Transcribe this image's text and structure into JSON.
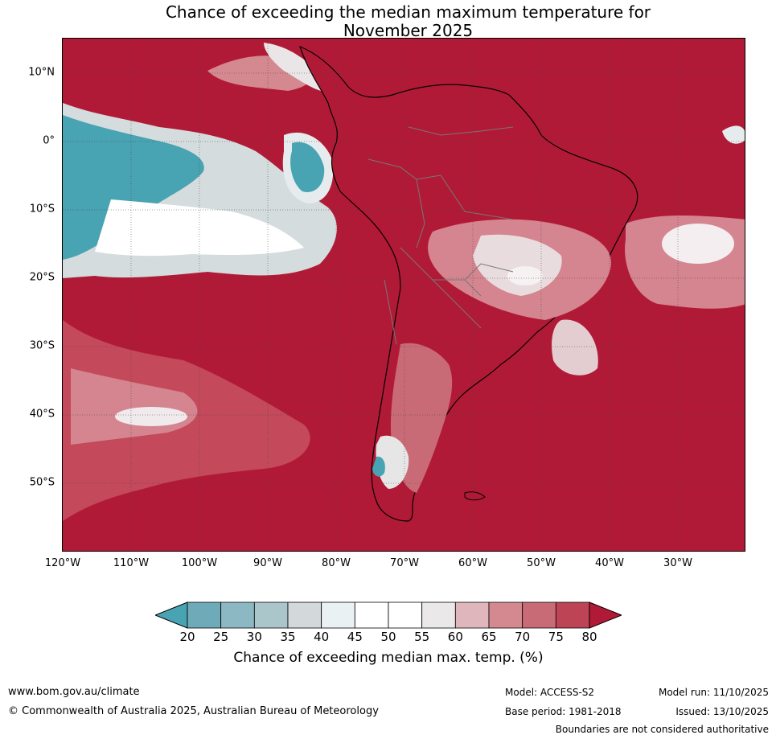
{
  "title": {
    "line1": "Chance of exceeding the median maximum temperature for",
    "line2": "November 2025"
  },
  "map": {
    "region": "South America and surrounding oceans",
    "colors": {
      "very_high": "#b11a36",
      "high": "#c4495a",
      "mid_high": "#d4858f",
      "neutral_warm": "#e9e4e6",
      "neutral": "#ffffff",
      "cool": "#8bb8c3",
      "very_cool": "#48a3b2",
      "land_outline": "#000000",
      "border": "#777777"
    },
    "lat_labels": [
      "10°N",
      "0°",
      "10°S",
      "20°S",
      "30°S",
      "40°S",
      "50°S"
    ],
    "lon_labels": [
      "120°W",
      "110°W",
      "100°W",
      "90°W",
      "80°W",
      "70°W",
      "60°W",
      "50°W",
      "40°W",
      "30°W"
    ]
  },
  "colorbar": {
    "ticks": [
      "20",
      "25",
      "30",
      "35",
      "40",
      "45",
      "50",
      "55",
      "60",
      "65",
      "70",
      "75",
      "80"
    ],
    "colors": [
      "#48a3b2",
      "#6eaab8",
      "#8bb8c3",
      "#aac6cb",
      "#d3d9da",
      "#eaf1f3",
      "#ffffff",
      "#ffffff",
      "#ebe8e9",
      "#dfb6bc",
      "#d48890",
      "#c96b76",
      "#bd4454",
      "#b11a36"
    ],
    "label": "Chance of exceeding median max. temp. (%)"
  },
  "footer": {
    "url": "www.bom.gov.au/climate",
    "copyright": "© Commonwealth of Australia 2025, Australian Bureau of Meteorology",
    "model": "Model: ACCESS-S2",
    "base_period": "Base period: 1981-2018",
    "model_run": "Model run: 11/10/2025",
    "issued": "Issued: 13/10/2025",
    "disclaimer": "Boundaries are not considered authoritative"
  }
}
